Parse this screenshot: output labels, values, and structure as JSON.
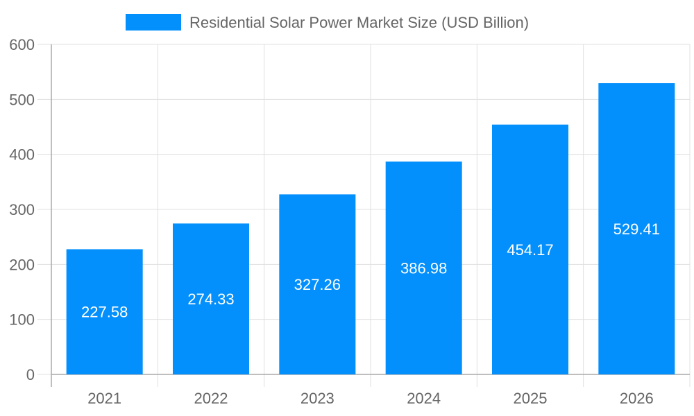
{
  "chart_data": {
    "type": "bar",
    "title": "",
    "xlabel": "",
    "ylabel": "",
    "categories": [
      "2021",
      "2022",
      "2023",
      "2024",
      "2025",
      "2026"
    ],
    "series": [
      {
        "name": "Residential Solar Power Market Size (USD Billion)",
        "values": [
          227.58,
          274.33,
          327.26,
          386.98,
          454.17,
          529.41
        ],
        "color": "#038ffc"
      }
    ],
    "data_labels": [
      "227.58",
      "274.33",
      "327.26",
      "386.98",
      "454.17",
      "529.41"
    ],
    "ylim": [
      0,
      600
    ],
    "yticks": [
      "0",
      "100",
      "200",
      "300",
      "400",
      "500",
      "600"
    ],
    "grid": true,
    "legend_position": "top"
  }
}
